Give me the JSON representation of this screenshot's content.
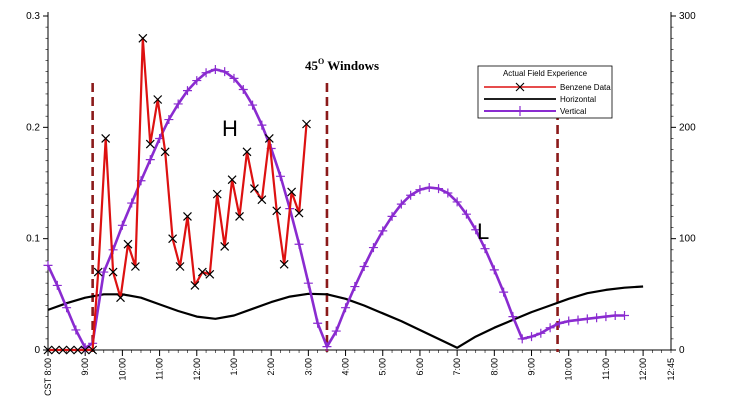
{
  "chart_data": {
    "type": "line",
    "title": "",
    "annotation_title": "45",
    "annotation_title_sup": "O",
    "annotation_title_suffix": " Windows",
    "region_labels": [
      "H",
      "L"
    ],
    "legend": {
      "title": "Actual Field Experience",
      "placement": "top-right",
      "entries": [
        "Benzene Data",
        "Horizontal",
        "Vertical"
      ]
    },
    "x_ticks": [
      "CST 8:00",
      "9:00",
      "10:00",
      "11:00",
      "12:00",
      "1:00",
      "2:00",
      "3:00",
      "4:00",
      "5:00",
      "6:00",
      "7:00",
      "8:00",
      "9:00",
      "10:00",
      "11:00",
      "12:00",
      "12:45"
    ],
    "x_range_hours": [
      0,
      16.75
    ],
    "y_left_ticks": [
      "0",
      "0.1",
      "0.2",
      "0.3"
    ],
    "y_left_range": [
      0,
      0.3
    ],
    "y_right_ticks": [
      "0",
      "100",
      "200",
      "300"
    ],
    "y_right_range": [
      0,
      300
    ],
    "window_lines_hours": [
      1.2,
      7.5,
      13.7
    ],
    "series": [
      {
        "name": "Benzene Data",
        "axis": "left",
        "color": "#dd1111",
        "marker": "x",
        "points": [
          [
            0.0,
            0.0
          ],
          [
            0.2,
            0.0
          ],
          [
            0.4,
            0.0
          ],
          [
            0.6,
            0.0
          ],
          [
            0.8,
            0.0
          ],
          [
            1.0,
            0.0
          ],
          [
            1.2,
            0.0
          ],
          [
            1.35,
            0.07
          ],
          [
            1.55,
            0.19
          ],
          [
            1.75,
            0.07
          ],
          [
            1.95,
            0.047
          ],
          [
            2.15,
            0.095
          ],
          [
            2.35,
            0.075
          ],
          [
            2.55,
            0.28
          ],
          [
            2.75,
            0.185
          ],
          [
            2.95,
            0.225
          ],
          [
            3.15,
            0.178
          ],
          [
            3.35,
            0.1
          ],
          [
            3.55,
            0.075
          ],
          [
            3.75,
            0.12
          ],
          [
            3.95,
            0.058
          ],
          [
            4.15,
            0.07
          ],
          [
            4.35,
            0.068
          ],
          [
            4.55,
            0.14
          ],
          [
            4.75,
            0.093
          ],
          [
            4.95,
            0.153
          ],
          [
            5.15,
            0.12
          ],
          [
            5.35,
            0.178
          ],
          [
            5.55,
            0.145
          ],
          [
            5.75,
            0.135
          ],
          [
            5.95,
            0.19
          ],
          [
            6.15,
            0.125
          ],
          [
            6.35,
            0.077
          ],
          [
            6.55,
            0.142
          ],
          [
            6.75,
            0.123
          ],
          [
            6.95,
            0.203
          ]
        ]
      },
      {
        "name": "Horizontal",
        "axis": "right",
        "color": "#000000",
        "marker": "none",
        "points": [
          [
            0.0,
            36
          ],
          [
            0.5,
            42
          ],
          [
            1.0,
            47
          ],
          [
            1.5,
            50
          ],
          [
            2.0,
            50
          ],
          [
            2.5,
            47
          ],
          [
            3.0,
            41
          ],
          [
            3.5,
            35
          ],
          [
            4.0,
            30
          ],
          [
            4.5,
            28
          ],
          [
            5.0,
            31
          ],
          [
            5.5,
            37
          ],
          [
            6.0,
            43
          ],
          [
            6.5,
            48
          ],
          [
            7.0,
            50.5
          ],
          [
            7.5,
            50
          ],
          [
            8.0,
            46
          ],
          [
            8.5,
            40
          ],
          [
            9.0,
            33
          ],
          [
            9.5,
            26
          ],
          [
            10.0,
            18
          ],
          [
            10.5,
            10
          ],
          [
            11.0,
            2
          ],
          [
            11.5,
            12
          ],
          [
            12.0,
            20
          ],
          [
            12.5,
            27
          ],
          [
            13.0,
            34
          ],
          [
            13.5,
            40
          ],
          [
            14.0,
            46
          ],
          [
            14.5,
            51
          ],
          [
            15.0,
            54
          ],
          [
            15.5,
            56
          ],
          [
            16.0,
            57
          ]
        ]
      },
      {
        "name": "Vertical",
        "axis": "right",
        "color": "#8a2bd0",
        "marker": "plus",
        "points": [
          [
            0.0,
            76
          ],
          [
            0.25,
            58
          ],
          [
            0.5,
            38
          ],
          [
            0.75,
            18
          ],
          [
            1.0,
            2
          ],
          [
            1.2,
            6
          ],
          [
            1.5,
            70
          ],
          [
            1.75,
            90
          ],
          [
            2.0,
            112
          ],
          [
            2.25,
            132
          ],
          [
            2.5,
            152
          ],
          [
            2.75,
            171
          ],
          [
            3.0,
            190
          ],
          [
            3.25,
            207
          ],
          [
            3.5,
            221
          ],
          [
            3.75,
            233
          ],
          [
            4.0,
            242
          ],
          [
            4.25,
            249
          ],
          [
            4.5,
            252
          ],
          [
            4.75,
            250
          ],
          [
            5.0,
            244
          ],
          [
            5.25,
            234
          ],
          [
            5.5,
            220
          ],
          [
            5.75,
            202
          ],
          [
            6.0,
            181
          ],
          [
            6.25,
            156
          ],
          [
            6.5,
            127
          ],
          [
            6.75,
            95
          ],
          [
            7.0,
            60
          ],
          [
            7.25,
            24
          ],
          [
            7.5,
            3
          ],
          [
            7.75,
            17
          ],
          [
            8.0,
            38
          ],
          [
            8.25,
            57
          ],
          [
            8.5,
            75
          ],
          [
            8.75,
            92
          ],
          [
            9.0,
            107
          ],
          [
            9.25,
            120
          ],
          [
            9.5,
            131
          ],
          [
            9.75,
            139
          ],
          [
            10.0,
            144
          ],
          [
            10.25,
            146
          ],
          [
            10.5,
            145
          ],
          [
            10.75,
            141
          ],
          [
            11.0,
            133
          ],
          [
            11.25,
            122
          ],
          [
            11.5,
            108
          ],
          [
            11.75,
            91
          ],
          [
            12.0,
            72
          ],
          [
            12.25,
            52
          ],
          [
            12.5,
            30
          ],
          [
            12.75,
            10
          ],
          [
            13.0,
            12
          ],
          [
            13.25,
            15
          ],
          [
            13.5,
            20
          ],
          [
            13.75,
            24
          ],
          [
            14.0,
            26
          ],
          [
            14.25,
            27
          ],
          [
            14.5,
            28
          ],
          [
            14.75,
            29
          ],
          [
            15.0,
            30
          ],
          [
            15.25,
            31
          ],
          [
            15.5,
            31
          ]
        ]
      }
    ]
  }
}
